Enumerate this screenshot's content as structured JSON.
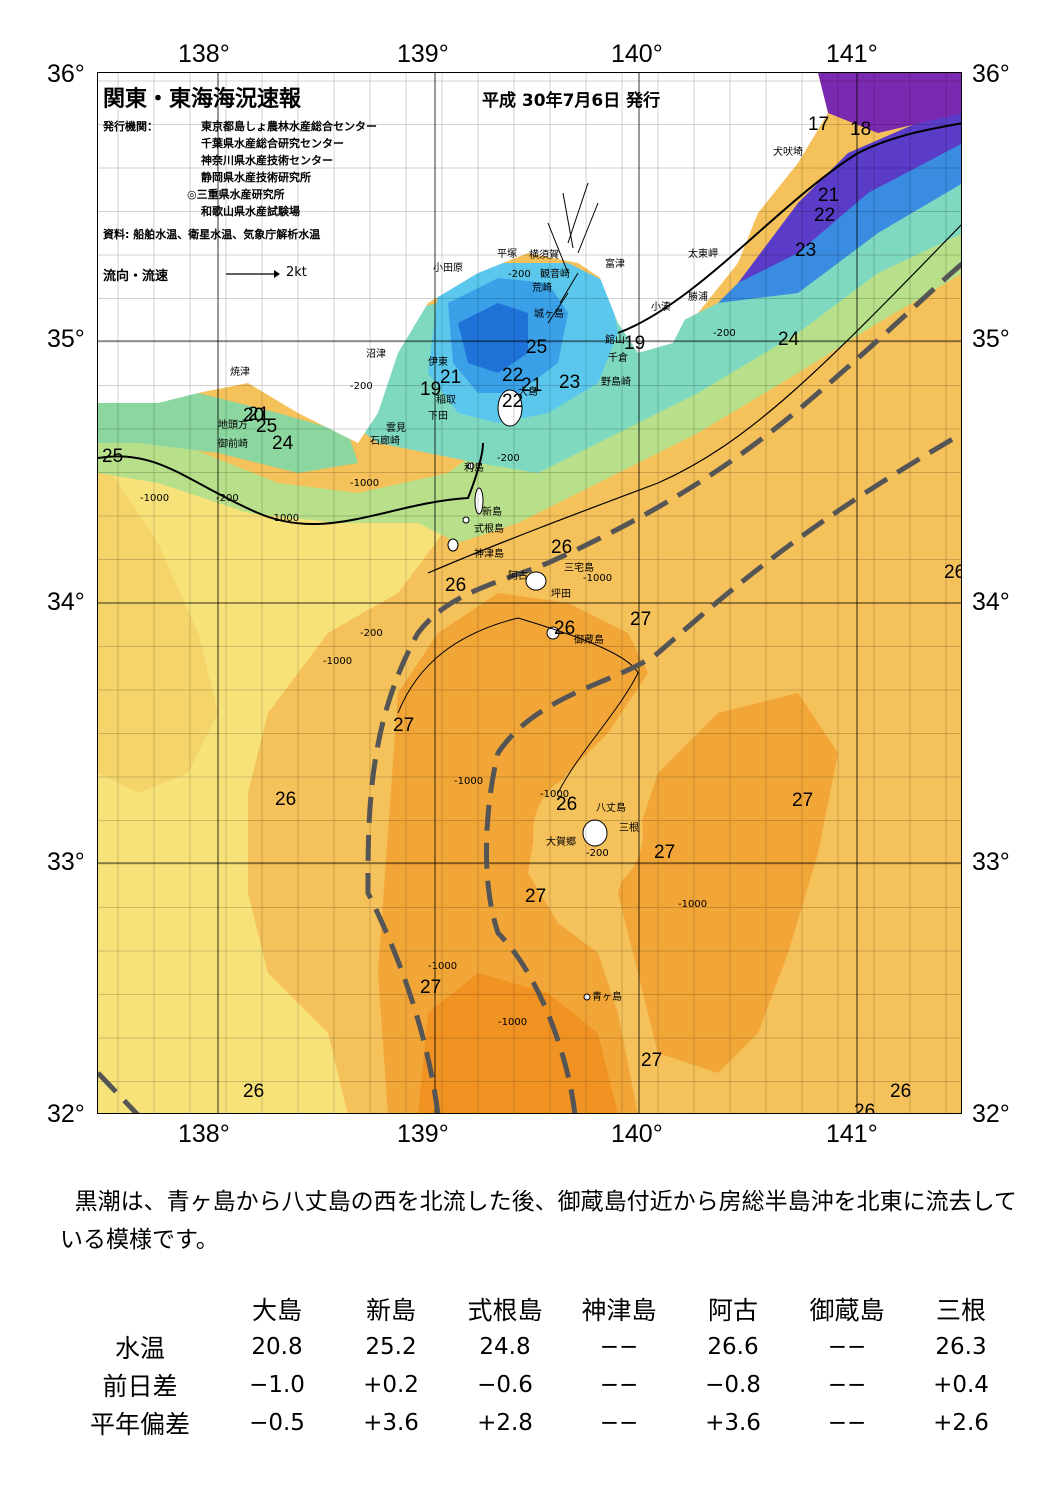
{
  "map": {
    "title": "関東・東海海況速報",
    "date": "平成 30年7月6日 発行",
    "issuer_label": "発行機関：",
    "issuers": [
      "東京都島しょ農林水産総合センター",
      "千葉県水産総合研究センター",
      "神奈川県水産技術センター",
      "静岡県水産技術研究所",
      "◎三重県水産研究所",
      "和歌山県水産試験場"
    ],
    "sources": "資料: 船舶水温、衛星水温、気象庁解析水温",
    "flow_legend": "流向・流速",
    "flow_scale": "2kt",
    "lon_labels": [
      "138°",
      "139°",
      "140°",
      "141°"
    ],
    "lat_labels": [
      "36°",
      "35°",
      "34°",
      "33°",
      "32°"
    ],
    "isotherm_labels": [
      "17",
      "18",
      "21",
      "22",
      "23",
      "24",
      "25",
      "19",
      "21",
      "22",
      "23",
      "22",
      "21",
      "19",
      "21",
      "20",
      "25",
      "24",
      "25",
      "26",
      "26",
      "26",
      "27",
      "27",
      "26",
      "26",
      "27",
      "27",
      "27",
      "27",
      "27",
      "26",
      "26",
      "26",
      "26"
    ],
    "depth_labels": [
      "-200",
      "-1000",
      "-200",
      "-200",
      "-1000",
      "-1000",
      "-200",
      "-200",
      "-1000",
      "-1000",
      "-1000",
      "-1000",
      "-1000",
      "-200",
      "-1000",
      "-1000",
      "-200"
    ],
    "places": [
      "犬吠埼",
      "太東岬",
      "勝浦",
      "小湊",
      "館山",
      "千倉",
      "野島崎",
      "富津",
      "横須賀",
      "観音崎",
      "平塚",
      "小田原",
      "荒崎",
      "城ヶ島",
      "沼津",
      "伊東",
      "稲取",
      "下田",
      "雲見",
      "石廊崎",
      "焼津",
      "地頭方",
      "御前崎",
      "大島",
      "利島",
      "新島",
      "式根島",
      "神津島",
      "阿古",
      "三宅島",
      "坪田",
      "御蔵島",
      "八丈島",
      "三根",
      "大賀郷",
      "青ヶ島"
    ]
  },
  "comment": "黒潮は、青ヶ島から八丈島の西を北流した後、御蔵島付近から房総半島沖を北東に流去している模様です。",
  "stats_table": {
    "columns": [
      "大島",
      "新島",
      "式根島",
      "神津島",
      "阿古",
      "御蔵島",
      "三根"
    ],
    "rows": [
      {
        "label": "水温",
        "values": [
          "20.8",
          "25.2",
          "24.8",
          "−−",
          "26.6",
          "−−",
          "26.3"
        ]
      },
      {
        "label": "前日差",
        "values": [
          "−1.0",
          "+0.2",
          "−0.6",
          "−−",
          "−0.8",
          "−−",
          "+0.4"
        ]
      },
      {
        "label": "平年偏差",
        "values": [
          "−0.5",
          "+3.6",
          "+2.8",
          "−−",
          "+3.6",
          "−−",
          "+2.6"
        ]
      }
    ]
  },
  "colors": {
    "t26": "#f5c15a",
    "t25": "#f7e27a",
    "t27": "#f2a637",
    "t27b": "#f09322",
    "t24": "#b8e08a",
    "t23": "#7fd8c0",
    "t22": "#5cc7ec",
    "t21": "#3aa0e8",
    "t20": "#1e72d8",
    "t18": "#5a3cc8",
    "t17": "#7a2ab0",
    "land": "#ffffff",
    "kuroshio": "#555555"
  }
}
